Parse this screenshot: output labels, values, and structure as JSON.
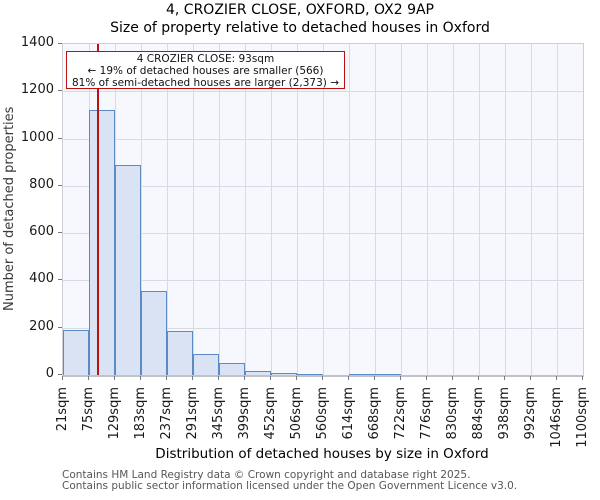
{
  "chart_data": {
    "type": "bar",
    "title": "4, CROZIER CLOSE, OXFORD, OX2 9AP",
    "subtitle": "Size of property relative to detached houses in Oxford",
    "xlabel": "Distribution of detached houses by size in Oxford",
    "ylabel": "Number of detached properties",
    "bin_edges_sqm": [
      21,
      75,
      129,
      183,
      237,
      291,
      345,
      399,
      452,
      506,
      560,
      614,
      668,
      722,
      776,
      830,
      884,
      938,
      992,
      1046,
      1100
    ],
    "xtick_labels": [
      "21sqm",
      "75sqm",
      "129sqm",
      "183sqm",
      "237sqm",
      "291sqm",
      "345sqm",
      "399sqm",
      "452sqm",
      "506sqm",
      "560sqm",
      "614sqm",
      "668sqm",
      "722sqm",
      "776sqm",
      "830sqm",
      "884sqm",
      "938sqm",
      "992sqm",
      "1046sqm",
      "1100sqm"
    ],
    "values": [
      190,
      1120,
      890,
      355,
      185,
      90,
      50,
      15,
      10,
      5,
      0,
      5,
      5,
      0,
      0,
      0,
      0,
      0,
      0,
      0
    ],
    "yticks": [
      0,
      200,
      400,
      600,
      800,
      1000,
      1200,
      1400
    ],
    "ylim": [
      0,
      1400
    ],
    "grid": true,
    "marker_sqm": 93,
    "annotation": {
      "line1": "4 CROZIER CLOSE: 93sqm",
      "line2": "← 19% of detached houses are smaller (566)",
      "line3": "81% of semi-detached houses are larger (2,373) →"
    },
    "colors": {
      "bar_fill": "#dae3f3",
      "bar_edge": "#5b8ac5",
      "marker_line": "#bb1111",
      "annotation_border": "#bb1111",
      "plot_bg": "#f6f8fd",
      "gridline": "#d8dbe2",
      "tick_text": "#1a1a1a"
    }
  },
  "footer": {
    "line1": "Contains HM Land Registry data © Crown copyright and database right 2025.",
    "line2": "Contains public sector information licensed under the Open Government Licence v3.0."
  }
}
